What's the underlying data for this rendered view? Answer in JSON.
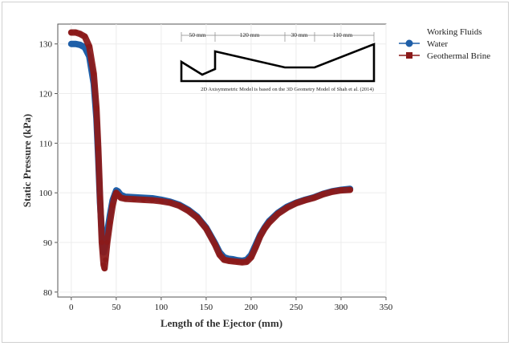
{
  "chart_data": {
    "type": "line",
    "title": "",
    "xlabel": "Length of the Ejector (mm)",
    "ylabel": "Static Pressure (kPa)",
    "xlim": [
      -15,
      350
    ],
    "ylim": [
      79,
      134
    ],
    "xticks": [
      0,
      50,
      100,
      150,
      200,
      250,
      300,
      350
    ],
    "yticks": [
      80,
      90,
      100,
      110,
      120,
      130
    ],
    "grid": true,
    "legend": {
      "title": "Working Fluids",
      "placement": "outside-right"
    },
    "series": [
      {
        "name": "Water",
        "color": "#1f5fa8",
        "marker": "circle",
        "x": [
          0,
          5,
          10,
          15,
          20,
          25,
          28,
          30,
          32,
          34,
          36,
          38,
          40,
          43,
          46,
          48,
          50,
          52,
          55,
          60,
          70,
          80,
          90,
          100,
          110,
          120,
          130,
          140,
          150,
          160,
          165,
          170,
          175,
          180,
          185,
          190,
          195,
          200,
          205,
          210,
          215,
          220,
          230,
          240,
          250,
          260,
          270,
          280,
          290,
          300,
          310
        ],
        "y": [
          130,
          130,
          129.8,
          129.3,
          127.5,
          122,
          115,
          107,
          98,
          92,
          88,
          89.5,
          92,
          95.5,
          98.5,
          99.5,
          100.5,
          100.3,
          99.6,
          99.2,
          99.1,
          99,
          98.9,
          98.6,
          98.2,
          97.6,
          96.6,
          95.2,
          93,
          89.8,
          88,
          87,
          86.7,
          86.6,
          86.4,
          86.3,
          86.5,
          87.5,
          89.5,
          91.5,
          93,
          94.3,
          96,
          97.2,
          98,
          98.6,
          99.1,
          99.8,
          100.3,
          100.6,
          100.8
        ]
      },
      {
        "name": "Geothermal Brine",
        "color": "#8b1a1a",
        "marker": "square",
        "x": [
          0,
          5,
          10,
          15,
          20,
          25,
          28,
          30,
          32,
          34,
          36,
          37,
          38,
          40,
          43,
          46,
          48,
          50,
          52,
          55,
          60,
          70,
          80,
          90,
          100,
          110,
          120,
          130,
          140,
          150,
          160,
          165,
          170,
          175,
          180,
          185,
          190,
          195,
          200,
          205,
          210,
          215,
          220,
          230,
          240,
          250,
          260,
          270,
          280,
          290,
          300,
          310
        ],
        "y": [
          132.3,
          132.3,
          132,
          131.5,
          129.5,
          124,
          117,
          109,
          99,
          90,
          85.5,
          84.8,
          86.5,
          90,
          94,
          97.5,
          99,
          100,
          99.6,
          99,
          98.8,
          98.7,
          98.6,
          98.5,
          98.3,
          98,
          97.4,
          96.4,
          95,
          92.8,
          89.5,
          87.5,
          86.5,
          86.3,
          86.2,
          86.1,
          86,
          86.1,
          87,
          89,
          91.2,
          92.8,
          94,
          95.8,
          97,
          97.9,
          98.5,
          99,
          99.7,
          100.2,
          100.5,
          100.6
        ]
      }
    ]
  },
  "inset": {
    "dimensions": [
      "50 mm",
      "120 mm",
      "30 mm",
      "110 mm"
    ],
    "note": "2D Axisymmetric Model is based on the 3D Geometry Model of Shah et al. (2014)"
  }
}
